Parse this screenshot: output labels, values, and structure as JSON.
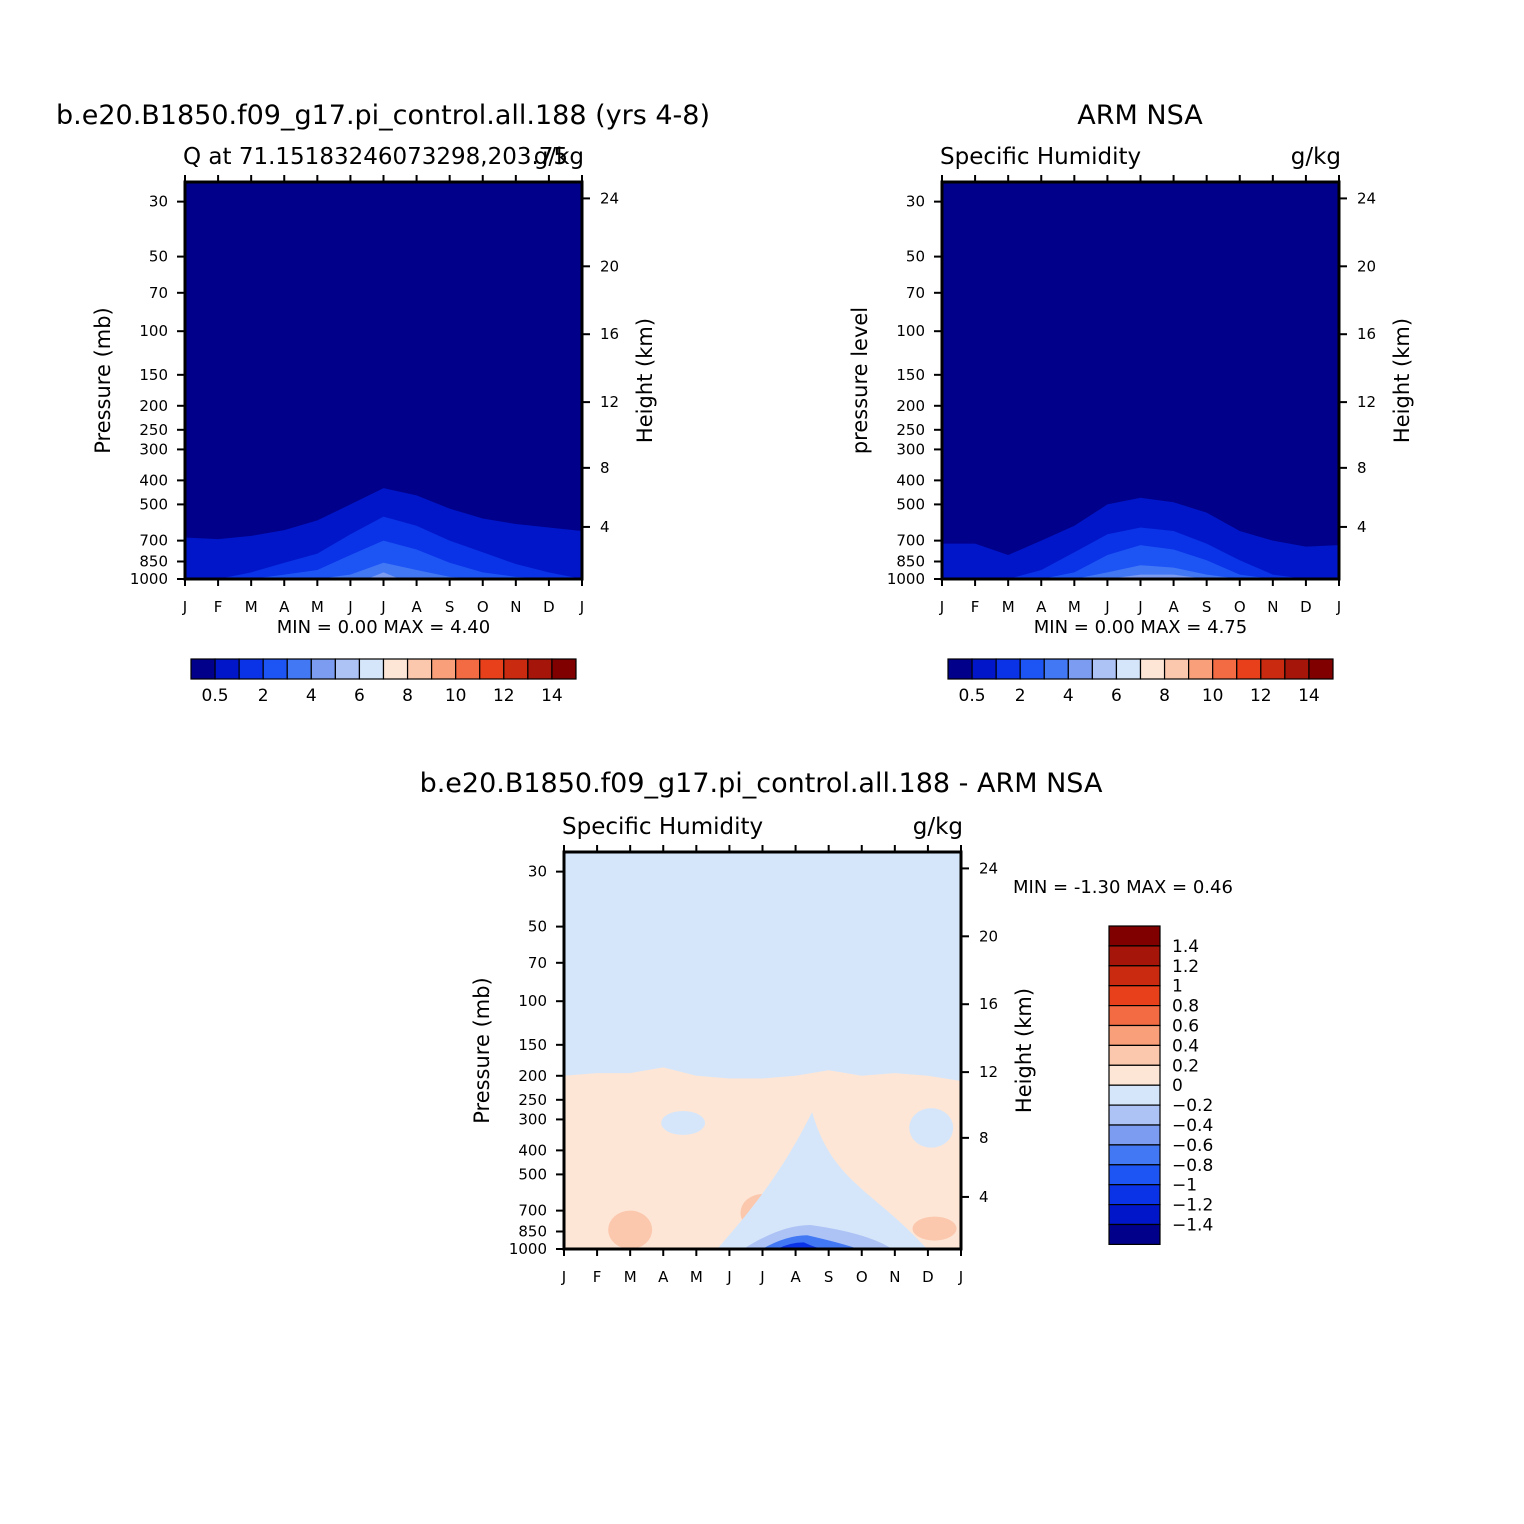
{
  "chart_data": [
    {
      "type": "heatmap",
      "title": "b.e20.B1850.f09_g17.pi_control.all.188 (yrs 4-8)",
      "subtitle_left": "Q at 71.15183246073298,203.75",
      "subtitle_right": "g/kg",
      "ylabel": "Pressure (mb)",
      "ylabel_right": "Height (km)",
      "x_ticks": [
        "J",
        "F",
        "M",
        "A",
        "M",
        "J",
        "J",
        "A",
        "S",
        "O",
        "N",
        "D",
        "J"
      ],
      "y_ticks_pressure": [
        30,
        50,
        70,
        100,
        150,
        200,
        250,
        300,
        400,
        500,
        700,
        850,
        1000
      ],
      "y_ticks_height": [
        24,
        20,
        16,
        12,
        8,
        4
      ],
      "ylim": [
        1000,
        25
      ],
      "log_scale_y": true,
      "stats_text": "MIN =    0.00  MAX =    4.40",
      "min": 0.0,
      "max": 4.4,
      "contour_levels": [
        0.5,
        1,
        2,
        3,
        4,
        5,
        6,
        7,
        8,
        9,
        10,
        11,
        12,
        13,
        14
      ],
      "colorbar_labels": [
        "0.5",
        "2",
        "4",
        "6",
        "8",
        "10",
        "12",
        "14"
      ],
      "contours": [
        {
          "level": 0.5,
          "months": [
            0,
            1,
            2,
            3,
            4,
            5,
            6,
            7,
            8,
            9,
            10,
            11,
            12
          ],
          "pressure_top": [
            680,
            690,
            670,
            635,
            580,
            500,
            430,
            460,
            520,
            570,
            600,
            620,
            640
          ]
        },
        {
          "level": 1,
          "months": [
            1,
            2,
            3,
            4,
            5,
            6,
            7,
            8,
            9,
            10,
            11,
            12
          ],
          "pressure_top": [
            1000,
            940,
            860,
            790,
            660,
            560,
            610,
            700,
            780,
            870,
            940,
            1000
          ]
        },
        {
          "level": 2,
          "months": [
            2,
            3,
            4,
            5,
            6,
            7,
            8,
            9,
            10,
            11
          ],
          "pressure_top": [
            1000,
            960,
            920,
            800,
            700,
            760,
            860,
            940,
            980,
            1000
          ]
        },
        {
          "level": 3,
          "months": [
            4,
            5,
            6,
            7,
            8,
            9
          ],
          "pressure_top": [
            1000,
            960,
            860,
            920,
            980,
            1000
          ]
        },
        {
          "level": 4,
          "months": [
            5.5,
            6,
            6.5
          ],
          "pressure_top": [
            1000,
            940,
            1000
          ]
        }
      ]
    },
    {
      "type": "heatmap",
      "title": "ARM NSA",
      "subtitle_left": "Specific Humidity",
      "subtitle_right": "g/kg",
      "ylabel": "pressure level",
      "ylabel_right": "Height (km)",
      "x_ticks": [
        "J",
        "F",
        "M",
        "A",
        "M",
        "J",
        "J",
        "A",
        "S",
        "O",
        "N",
        "D",
        "J"
      ],
      "y_ticks_pressure": [
        30,
        50,
        70,
        100,
        150,
        200,
        250,
        300,
        400,
        500,
        700,
        850,
        1000
      ],
      "y_ticks_height": [
        24,
        20,
        16,
        12,
        8,
        4
      ],
      "ylim": [
        1000,
        25
      ],
      "log_scale_y": true,
      "stats_text": "MIN =    0.00  MAX =    4.75",
      "min": 0.0,
      "max": 4.75,
      "contour_levels": [
        0.5,
        1,
        2,
        3,
        4,
        5,
        6,
        7,
        8,
        9,
        10,
        11,
        12,
        13,
        14
      ],
      "colorbar_labels": [
        "0.5",
        "2",
        "4",
        "6",
        "8",
        "10",
        "12",
        "14"
      ],
      "contours": [
        {
          "level": 0.5,
          "months": [
            0,
            1,
            2,
            3,
            4,
            5,
            6,
            7,
            8,
            9,
            10,
            11,
            12
          ],
          "pressure_top": [
            720,
            720,
            800,
            700,
            610,
            500,
            470,
            490,
            540,
            640,
            700,
            740,
            730
          ]
        },
        {
          "level": 1,
          "months": [
            2,
            3,
            4,
            5,
            6,
            7,
            8,
            9,
            10,
            11
          ],
          "pressure_top": [
            1000,
            920,
            780,
            660,
            620,
            640,
            720,
            840,
            960,
            1000
          ]
        },
        {
          "level": 2,
          "months": [
            3,
            4,
            5,
            6,
            7,
            8,
            9,
            10
          ],
          "pressure_top": [
            1000,
            940,
            800,
            730,
            760,
            840,
            960,
            1000
          ]
        },
        {
          "level": 3,
          "months": [
            4,
            5,
            6,
            7,
            8,
            9
          ],
          "pressure_top": [
            1000,
            940,
            880,
            900,
            960,
            1000
          ]
        },
        {
          "level": 4,
          "months": [
            5,
            6,
            7,
            8
          ],
          "pressure_top": [
            1000,
            960,
            960,
            1000
          ]
        }
      ]
    },
    {
      "type": "heatmap",
      "title": "b.e20.B1850.f09_g17.pi_control.all.188 - ARM NSA",
      "subtitle_left": "Specific Humidity",
      "subtitle_right": "g/kg",
      "ylabel": "Pressure (mb)",
      "ylabel_right": "Height (km)",
      "x_ticks": [
        "J",
        "F",
        "M",
        "A",
        "M",
        "J",
        "J",
        "A",
        "S",
        "O",
        "N",
        "D",
        "J"
      ],
      "y_ticks_pressure": [
        30,
        50,
        70,
        100,
        150,
        200,
        250,
        300,
        400,
        500,
        700,
        850,
        1000
      ],
      "y_ticks_height": [
        24,
        20,
        16,
        12,
        8,
        4
      ],
      "ylim": [
        1000,
        25
      ],
      "log_scale_y": true,
      "stats_text": "MIN =   -1.30  MAX =    0.46",
      "min": -1.3,
      "max": 0.46,
      "contour_levels": [
        -1.4,
        -1.2,
        -1,
        -0.8,
        -0.6,
        -0.4,
        -0.2,
        0,
        0.2,
        0.4,
        0.6,
        0.8,
        1,
        1.2,
        1.4
      ],
      "colorbar_labels": [
        "1.4",
        "1.2",
        "1",
        "0.8",
        "0.6",
        "0.4",
        "0.2",
        "0",
        "-0.2",
        "-0.4",
        "-0.6",
        "-0.8",
        "-1",
        "-1.2",
        "-1.4"
      ],
      "upper_boundary_zero": {
        "months": [
          0,
          1,
          2,
          3,
          4,
          5,
          6,
          7,
          8,
          9,
          10,
          11,
          12
        ],
        "pressure": [
          200,
          195,
          195,
          185,
          200,
          205,
          205,
          200,
          190,
          200,
          195,
          200,
          210
        ]
      },
      "regions": [
        {
          "value": -0.1,
          "kind": "blob",
          "month": 3.6,
          "pressure": [
            310,
            350,
            350,
            310
          ]
        },
        {
          "value": -0.1,
          "kind": "blob",
          "month": 11.1,
          "pressure": [
            270,
            390
          ]
        },
        {
          "value": 0.3,
          "kind": "blob",
          "month": 6.0,
          "pressure": [
            600,
            850
          ]
        },
        {
          "value": 0.3,
          "kind": "blob",
          "month": 2.0,
          "pressure": [
            700,
            1000
          ]
        },
        {
          "value": 0.3,
          "kind": "blob",
          "month": 11.2,
          "pressure": [
            760,
            900
          ]
        },
        {
          "value": -0.1,
          "kind": "tongue",
          "month": 7.5,
          "pressure": [
            280,
            1000
          ]
        },
        {
          "value": -0.3,
          "kind": "core",
          "month": 7.3,
          "pressure": [
            800,
            1000
          ]
        },
        {
          "value": -0.7,
          "kind": "core",
          "month": 7.2,
          "pressure": [
            880,
            1000
          ]
        },
        {
          "value": -1.1,
          "kind": "core",
          "month": 7.1,
          "pressure": [
            940,
            1000
          ]
        }
      ]
    }
  ]
}
